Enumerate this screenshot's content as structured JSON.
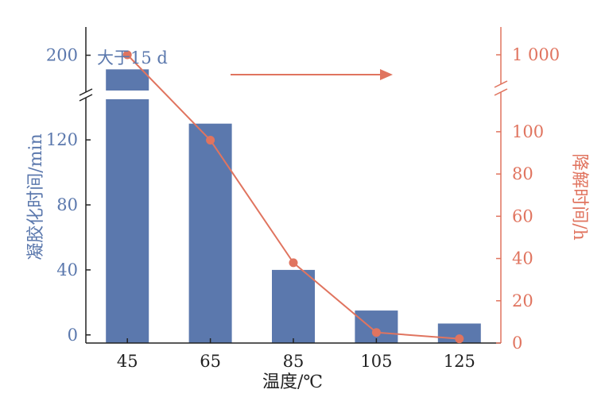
{
  "chart_data": {
    "type": "bar",
    "categories": [
      "45",
      "65",
      "85",
      "105",
      "125"
    ],
    "xlabel": "温度/℃",
    "series": [
      {
        "name": "凝胶化时间",
        "type": "bar",
        "axis": "left",
        "values": [
          190,
          130,
          40,
          15,
          7
        ]
      },
      {
        "name": "降解时间",
        "type": "line",
        "axis": "right",
        "values": [
          1000,
          96,
          38,
          5,
          2
        ]
      }
    ],
    "left_axis": {
      "label": "凝胶化时间/min",
      "color": "#5b78ad",
      "lower_segment": {
        "range": [
          -5,
          145
        ],
        "ticks": [
          0,
          40,
          80,
          120
        ],
        "tick_labels": [
          "0",
          "40",
          "80",
          "120"
        ]
      },
      "upper_segment": {
        "range": [
          175,
          220
        ],
        "ticks": [
          200
        ],
        "tick_labels": [
          "200"
        ]
      },
      "axis_break": true
    },
    "right_axis": {
      "label": "降解时间/h",
      "color": "#e0745f",
      "lower_segment": {
        "range": [
          0,
          118
        ],
        "ticks": [
          0,
          20,
          40,
          60,
          80,
          100
        ],
        "tick_labels": [
          "0",
          "20",
          "40",
          "60",
          "80",
          "100"
        ]
      },
      "upper_segment": {
        "range": [
          900,
          1100
        ],
        "ticks": [
          1000
        ],
        "tick_labels": [
          "1 000"
        ]
      },
      "axis_break": true
    },
    "annotations": [
      {
        "text": "大于15 d",
        "category": "45",
        "series": "凝胶化时间"
      },
      {
        "type": "arrow",
        "direction": "right",
        "series": "降解时间"
      }
    ],
    "grid": false,
    "legend": "none"
  }
}
